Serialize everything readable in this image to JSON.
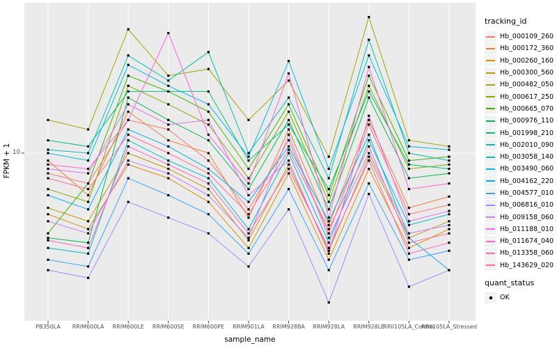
{
  "figure": {
    "panel_bg": "#ebebeb",
    "grid_color": "#ffffff",
    "point_color": "#000000",
    "tick_color": "#333333",
    "tick_label_color": "#4d4d4d"
  },
  "axes": {
    "y_title": "FPKM + 1",
    "x_title": "sample_name",
    "y_tick_label": "10"
  },
  "legend": {
    "tracking_title": "tracking_id",
    "quant_title": "quant_status",
    "quant_items": [
      {
        "label": "OK",
        "symbol": "black-square"
      }
    ]
  },
  "chart_data": {
    "type": "line",
    "title": "",
    "xlabel": "sample_name",
    "ylabel": "FPKM + 1",
    "y_scale": "log10",
    "ylim": [
      0.95,
      85
    ],
    "y_major_breaks": [
      10
    ],
    "grid": "major",
    "legend_position": "right",
    "point_marker": "black-square",
    "categories": [
      "PB350LA",
      "RRIM600LA",
      "RRIM600LE",
      "RRIM600SE",
      "RRIM600PE",
      "RRIM901LA",
      "RRIM928BA",
      "RRIM928LA",
      "RRIM928LE",
      "RRII105LA_Control",
      "RRII105LA_Stressed"
    ],
    "series": [
      {
        "name": "Hb_000109_260",
        "color": "#F8766D",
        "values": [
          7.5,
          6.5,
          16,
          14,
          9,
          4.5,
          12,
          3.2,
          15,
          4.2,
          4.8
        ]
      },
      {
        "name": "Hb_000172_360",
        "color": "#EA8331",
        "values": [
          9,
          5.5,
          18,
          12,
          10,
          4.0,
          14,
          3.6,
          16,
          4.6,
          5.4
        ]
      },
      {
        "name": "Hb_000260_160",
        "color": "#D89000",
        "values": [
          4.2,
          3.4,
          8.5,
          7,
          5,
          2.6,
          7.5,
          2.2,
          8,
          2.6,
          3.4
        ]
      },
      {
        "name": "Hb_000300_560",
        "color": "#C09B00",
        "values": [
          4.6,
          3.8,
          10,
          8,
          6,
          2.9,
          8.5,
          2.5,
          9.5,
          3.0,
          3.8
        ]
      },
      {
        "name": "Hb_000482_050",
        "color": "#A3A500",
        "values": [
          16,
          14,
          58,
          30,
          33,
          16,
          28,
          9.5,
          69,
          12,
          11
        ]
      },
      {
        "name": "Hb_000617_250",
        "color": "#7CAE00",
        "values": [
          6,
          5,
          26,
          20,
          15,
          7,
          18,
          5,
          26,
          8,
          8.5
        ]
      },
      {
        "name": "Hb_000665_070",
        "color": "#39B600",
        "values": [
          3.2,
          6.5,
          30,
          24,
          18,
          8,
          20,
          5.5,
          30,
          9,
          9.5
        ]
      },
      {
        "name": "Hb_000976_110",
        "color": "#00BB4E",
        "values": [
          3.0,
          2.8,
          22,
          16,
          12,
          6,
          16,
          4.5,
          22,
          7,
          7.5
        ]
      },
      {
        "name": "Hb_001998_210",
        "color": "#00BF7D",
        "values": [
          12,
          11,
          24,
          24,
          24,
          9,
          15,
          6,
          24,
          8.5,
          8
        ]
      },
      {
        "name": "Hb_002010_090",
        "color": "#00C1A3",
        "values": [
          10.5,
          10,
          40,
          28,
          42,
          10,
          22,
          7,
          50,
          10,
          9
        ]
      },
      {
        "name": "Hb_003058_140",
        "color": "#00BFC4",
        "values": [
          2.6,
          2.4,
          12,
          9,
          7,
          3.4,
          10,
          2.8,
          12,
          3.6,
          4.2
        ]
      },
      {
        "name": "Hb_003490_060",
        "color": "#00BAE0",
        "values": [
          10,
          9,
          35,
          26,
          20,
          9.5,
          37,
          8,
          40,
          11,
          10.5
        ]
      },
      {
        "name": "Hb_004162_220",
        "color": "#00B0F6",
        "values": [
          5.5,
          4.5,
          14,
          11,
          8,
          5,
          11,
          3.8,
          13,
          3.0,
          1.9
        ]
      },
      {
        "name": "Hb_004577_010",
        "color": "#35A2FF",
        "values": [
          2.2,
          2.0,
          7,
          5.5,
          4.2,
          2.4,
          6,
          1.9,
          6.5,
          2.2,
          2.5
        ]
      },
      {
        "name": "Hb_006816_010",
        "color": "#9590FF",
        "values": [
          1.9,
          1.7,
          5,
          4,
          3.2,
          2.0,
          4.5,
          1.2,
          5.6,
          1.5,
          1.9
        ]
      },
      {
        "name": "Hb_009158_060",
        "color": "#C77CFF",
        "values": [
          3.8,
          3.2,
          9,
          7.5,
          5.5,
          3.0,
          13,
          3.0,
          10,
          3.2,
          3.6
        ]
      },
      {
        "name": "Hb_011188_010",
        "color": "#E76BF3",
        "values": [
          8,
          7.5,
          20,
          15,
          16,
          5.5,
          9,
          2.4,
          17,
          3.8,
          4.4
        ]
      },
      {
        "name": "Hb_011674_040",
        "color": "#FA62DB",
        "values": [
          8.5,
          8,
          16,
          55,
          13,
          6.5,
          31,
          4,
          34,
          6,
          6.5
        ]
      },
      {
        "name": "Hb_013358_060",
        "color": "#FF62BC",
        "values": [
          2.9,
          2.6,
          11,
          8.5,
          6.5,
          3.2,
          8,
          2.6,
          9,
          2.4,
          2.8
        ]
      },
      {
        "name": "Hb_143629_020",
        "color": "#FF6A98",
        "values": [
          7,
          6,
          13,
          10,
          7.5,
          4.2,
          10.5,
          3.4,
          11,
          2.8,
          3.2
        ]
      }
    ]
  }
}
